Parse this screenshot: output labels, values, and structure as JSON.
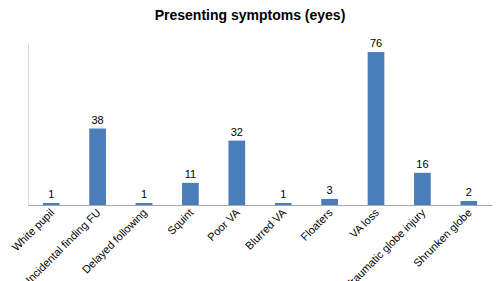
{
  "chart_data": {
    "type": "bar",
    "title": "Presenting symptoms (eyes)",
    "categories": [
      "White pupil",
      "Incidental finding FU",
      "Delayed following",
      "Squint",
      "Poor VA",
      "Blurred VA",
      "Floaters",
      "VA loss",
      "Traumatic globe injury",
      "Shrunken globe"
    ],
    "values": [
      1,
      38,
      1,
      11,
      32,
      1,
      3,
      76,
      16,
      2
    ],
    "color": "#4a7ebb",
    "ylim": [
      0,
      80
    ],
    "grid": false,
    "data_labels": true,
    "tick_labels": "x"
  }
}
